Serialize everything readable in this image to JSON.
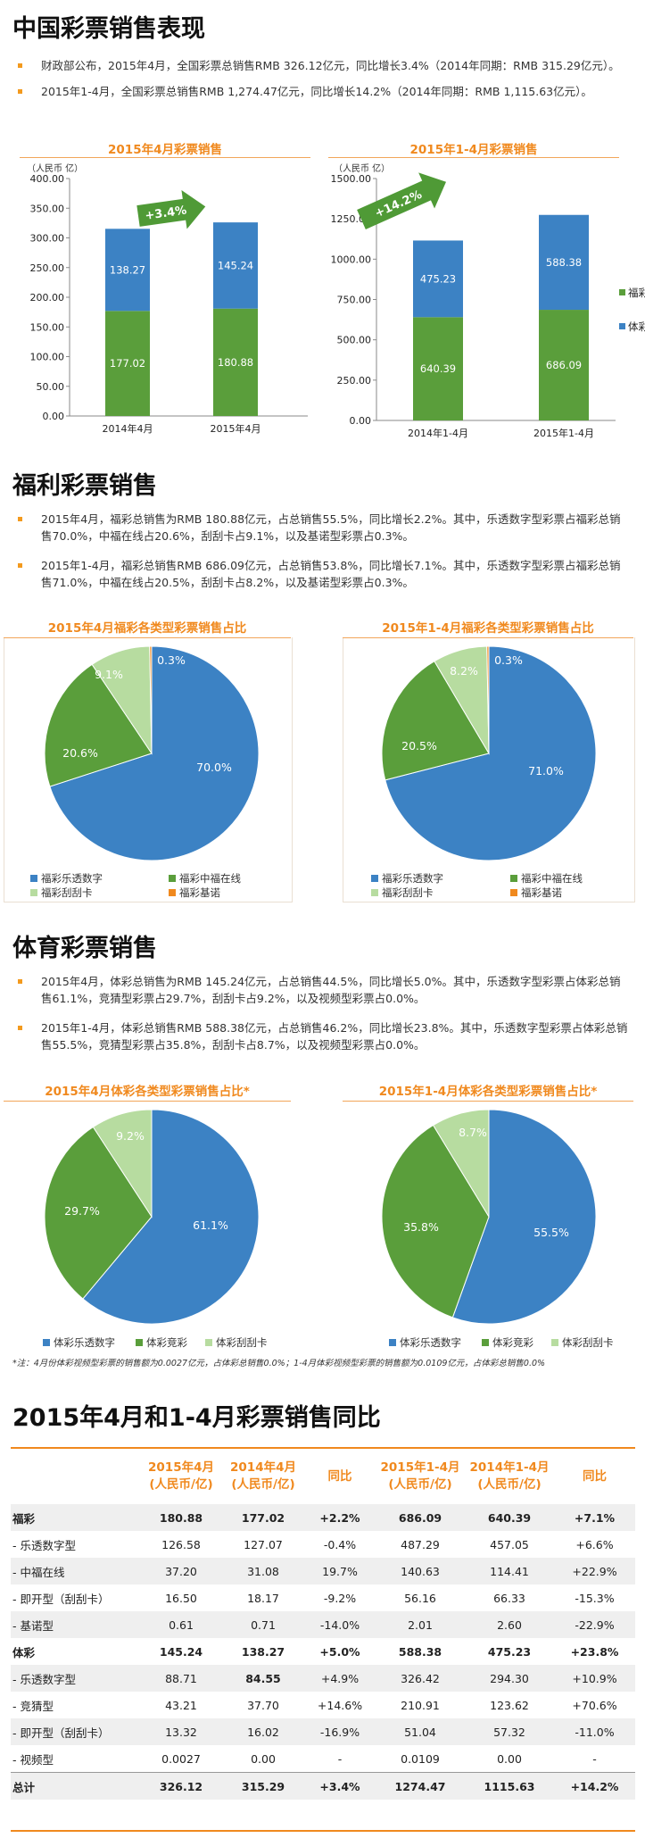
{
  "section1": {
    "title": "中国彩票销售表现",
    "bullets": [
      "财政部公布，2015年4月，全国彩票总销售RMB 326.12亿元，同比增长3.4%（2014年同期：RMB 315.29亿元）。",
      "2015年1-4月，全国彩票总销售RMB 1,274.47亿元，同比增长14.2%（2014年同期：RMB 1,115.63亿元）。"
    ]
  },
  "section2": {
    "title": "福利彩票销售",
    "bullets": [
      "2015年4月，福彩总销售为RMB 180.88亿元，占总销售55.5%，同比增长2.2%。其中，乐透数字型彩票占福彩总销售70.0%，中福在线占20.6%，刮刮卡占9.1%，以及基诺型彩票占0.3%。",
      "2015年1-4月，福彩总销售RMB 686.09亿元，占总销售53.8%，同比增长7.1%。其中，乐透数字型彩票占福彩总销售71.0%，中福在线占20.5%，刮刮卡占8.2%，以及基诺型彩票占0.3%。"
    ]
  },
  "section3": {
    "title": "体育彩票销售",
    "bullets": [
      "2015年4月，体彩总销售为RMB 145.24亿元，占总销售44.5%，同比增长5.0%。其中，乐透数字型彩票占体彩总销售61.1%，竞猜型彩票占29.7%，刮刮卡占9.2%，以及视频型彩票占0.0%。",
      "2015年1-4月，体彩总销售RMB 588.38亿元，占总销售46.2%，同比增长23.8%。其中，乐透数字型彩票占体彩总销售55.5%，竞猜型彩票占35.8%，刮刮卡占8.7%，以及视频型彩票占0.0%。"
    ],
    "note": "*注：4月份体彩视频型彩票的销售额为0.0027亿元，占体彩总销售0.0%；1-4月体彩视频型彩票的销售额为0.0109亿元，占体彩总销售0.0%"
  },
  "colors": {
    "blue": "#3c82c4",
    "green": "#5a9e3b",
    "lightgreen": "#b7dca0",
    "orange": "#f0891e",
    "accent": "#f0891e"
  },
  "chart_data": [
    {
      "type": "bar",
      "stacked": true,
      "title": "2015年4月彩票销售",
      "ylabel": "（人民币 亿）",
      "ylim": [
        0,
        400
      ],
      "yticks": [
        "0.00",
        "50.00",
        "100.00",
        "150.00",
        "200.00",
        "250.00",
        "300.00",
        "350.00",
        "400.00"
      ],
      "categories": [
        "2014年4月",
        "2015年4月"
      ],
      "series": [
        {
          "name": "福彩",
          "color": "#5a9e3b",
          "values": [
            177.02,
            180.88
          ],
          "labels": [
            "177.02",
            "180.88"
          ]
        },
        {
          "name": "体彩",
          "color": "#3c82c4",
          "values": [
            138.27,
            145.24
          ],
          "labels": [
            "138.27",
            "145.24"
          ]
        }
      ],
      "growth_label": "+3.4%"
    },
    {
      "type": "bar",
      "stacked": true,
      "title": "2015年1-4月彩票销售",
      "ylabel": "（人民币 亿）",
      "ylim": [
        0,
        1500
      ],
      "yticks": [
        "0.00",
        "250.00",
        "500.00",
        "750.00",
        "1000.00",
        "1250.00",
        "1500.00"
      ],
      "categories": [
        "2014年1-4月",
        "2015年1-4月"
      ],
      "series": [
        {
          "name": "福彩",
          "color": "#5a9e3b",
          "values": [
            640.39,
            686.09
          ],
          "labels": [
            "640.39",
            "686.09"
          ]
        },
        {
          "name": "体彩",
          "color": "#3c82c4",
          "values": [
            475.23,
            588.38
          ],
          "labels": [
            "475.23",
            "588.38"
          ]
        }
      ],
      "legend": [
        "福彩",
        "体彩"
      ],
      "growth_label": "+14.2%"
    },
    {
      "type": "pie",
      "title": "2015年4月福彩各类型彩票销售占比",
      "slices": [
        {
          "name": "福彩乐透数字",
          "value": 70.0,
          "label": "70.0%",
          "color": "#3c82c4"
        },
        {
          "name": "福彩中福在线",
          "value": 20.6,
          "label": "20.6%",
          "color": "#5a9e3b"
        },
        {
          "name": "福彩刮刮卡",
          "value": 9.1,
          "label": "9.1%",
          "color": "#b7dca0"
        },
        {
          "name": "福彩基诺",
          "value": 0.3,
          "label": "0.3%",
          "color": "#f0891e"
        }
      ]
    },
    {
      "type": "pie",
      "title": "2015年1-4月福彩各类型彩票销售占比",
      "slices": [
        {
          "name": "福彩乐透数字",
          "value": 71.0,
          "label": "71.0%",
          "color": "#3c82c4"
        },
        {
          "name": "福彩中福在线",
          "value": 20.5,
          "label": "20.5%",
          "color": "#5a9e3b"
        },
        {
          "name": "福彩刮刮卡",
          "value": 8.2,
          "label": "8.2%",
          "color": "#b7dca0"
        },
        {
          "name": "福彩基诺",
          "value": 0.3,
          "label": "0.3%",
          "color": "#f0891e"
        }
      ]
    },
    {
      "type": "pie",
      "title": "2015年4月体彩各类型彩票销售占比*",
      "slices": [
        {
          "name": "体彩乐透数字",
          "value": 61.1,
          "label": "61.1%",
          "color": "#3c82c4"
        },
        {
          "name": "体彩竞彩",
          "value": 29.7,
          "label": "29.7%",
          "color": "#5a9e3b"
        },
        {
          "name": "体彩刮刮卡",
          "value": 9.2,
          "label": "9.2%",
          "color": "#b7dca0"
        }
      ]
    },
    {
      "type": "pie",
      "title": "2015年1-4月体彩各类型彩票销售占比*",
      "slices": [
        {
          "name": "体彩乐透数字",
          "value": 55.5,
          "label": "55.5%",
          "color": "#3c82c4"
        },
        {
          "name": "体彩竞彩",
          "value": 35.8,
          "label": "35.8%",
          "color": "#5a9e3b"
        },
        {
          "name": "体彩刮刮卡",
          "value": 8.7,
          "label": "8.7%",
          "color": "#b7dca0"
        }
      ]
    },
    {
      "type": "table",
      "title": "2015年4月和1-4月彩票销售同比",
      "headers": [
        "",
        "2015年4月\n(人民币/亿)",
        "2014年4月\n(人民币/亿)",
        "同比",
        "2015年1-4月\n(人民币/亿)",
        "2014年1-4月\n(人民币/亿)",
        "同比"
      ],
      "rows": [
        {
          "cells": [
            "福彩",
            "180.88",
            "177.02",
            "+2.2%",
            "686.09",
            "640.39",
            "+7.1%"
          ],
          "bold": true,
          "grey": true
        },
        {
          "cells": [
            "- 乐透数字型",
            "126.58",
            "127.07",
            "-0.4%",
            "487.29",
            "457.05",
            "+6.6%"
          ]
        },
        {
          "cells": [
            "- 中福在线",
            "37.20",
            "31.08",
            "19.7%",
            "140.63",
            "114.41",
            "+22.9%"
          ],
          "grey": true
        },
        {
          "cells": [
            "- 即开型（刮刮卡）",
            "16.50",
            "18.17",
            "-9.2%",
            "56.16",
            "66.33",
            "-15.3%"
          ]
        },
        {
          "cells": [
            "- 基诺型",
            "0.61",
            "0.71",
            "-14.0%",
            "2.01",
            "2.60",
            "-22.9%"
          ],
          "grey": true
        },
        {
          "cells": [
            "体彩",
            "145.24",
            "138.27",
            "+5.0%",
            "588.38",
            "475.23",
            "+23.8%"
          ],
          "bold": true
        },
        {
          "cells": [
            "- 乐透数字型",
            "88.71",
            "84.55",
            "+4.9%",
            "326.42",
            "294.30",
            "+10.9%"
          ],
          "grey": true
        },
        {
          "cells": [
            "- 竞猜型",
            "43.21",
            "37.70",
            "+14.6%",
            "210.91",
            "123.62",
            "+70.6%"
          ]
        },
        {
          "cells": [
            "- 即开型（刮刮卡）",
            "13.32",
            "16.02",
            "-16.9%",
            "51.04",
            "57.32",
            "-11.0%"
          ],
          "grey": true
        },
        {
          "cells": [
            "- 视频型",
            "0.0027",
            "0.00",
            "-",
            "0.0109",
            "0.00",
            "-"
          ]
        },
        {
          "cells": [
            "总计",
            "326.12",
            "315.29",
            "+3.4%",
            "1274.47",
            "1115.63",
            "+14.2%"
          ],
          "bold": true,
          "grey": true,
          "total": true
        }
      ]
    }
  ]
}
